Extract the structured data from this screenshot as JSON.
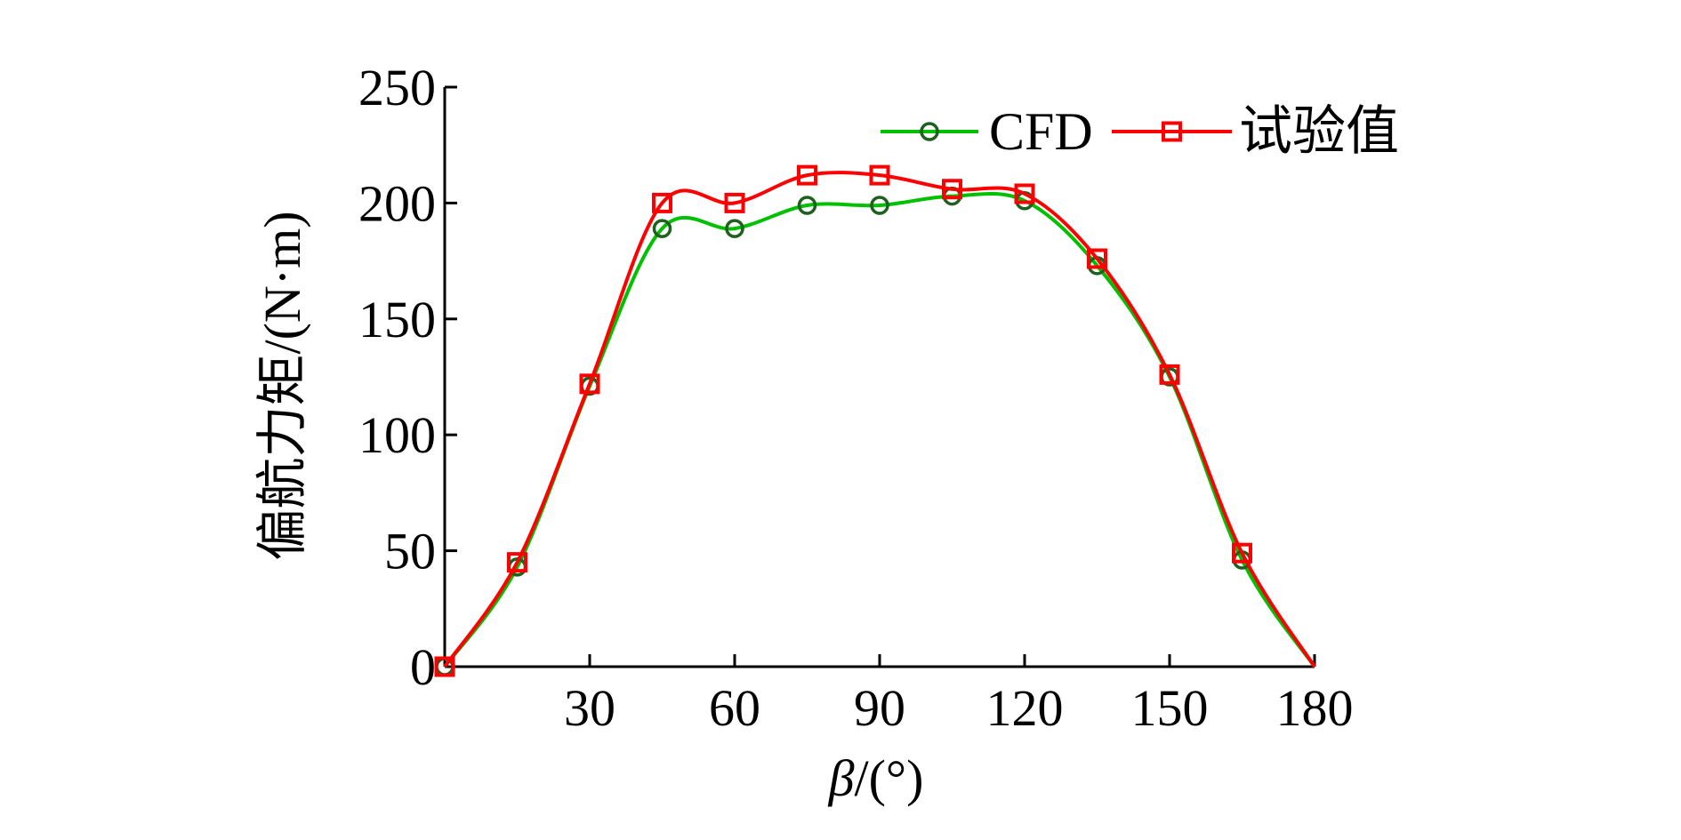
{
  "chart_data": {
    "type": "line",
    "title": "",
    "xlabel_symbol": "β",
    "xlabel_unit": "/(°)",
    "ylabel": "偏航力矩/(N·m)",
    "xlim": [
      0,
      180
    ],
    "ylim": [
      0,
      250
    ],
    "xticks": [
      30,
      60,
      90,
      120,
      150,
      180
    ],
    "yticks": [
      0,
      50,
      100,
      150,
      200,
      250
    ],
    "grid": false,
    "legend_position": "top-right",
    "series": [
      {
        "name": "CFD",
        "color": "#00c000",
        "marker": "circle",
        "x": [
          0,
          15,
          30,
          45,
          60,
          75,
          90,
          105,
          120,
          135,
          150,
          165,
          180
        ],
        "y": [
          0,
          43,
          121,
          189,
          189,
          199,
          199,
          203,
          201,
          173,
          125,
          46,
          0
        ],
        "x_markers": [
          0,
          15,
          30,
          45,
          60,
          75,
          90,
          105,
          120,
          135,
          150,
          165
        ]
      },
      {
        "name": "试验值",
        "color": "#ff0000",
        "marker": "square",
        "x": [
          0,
          15,
          30,
          45,
          60,
          75,
          90,
          105,
          120,
          135,
          150,
          165,
          180
        ],
        "y": [
          0,
          45,
          122,
          200,
          200,
          212,
          212,
          206,
          204,
          176,
          126,
          49,
          0
        ],
        "x_markers": [
          0,
          15,
          30,
          45,
          60,
          75,
          90,
          105,
          120,
          135,
          150,
          165
        ]
      }
    ]
  }
}
